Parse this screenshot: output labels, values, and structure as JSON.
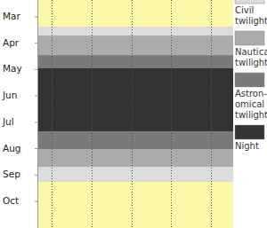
{
  "chart_data": {
    "type": "band",
    "color": "#fdf7a8",
    "xlim": [
      -0.35,
      4.55
    ],
    "xticks": [
      0,
      1,
      2,
      3,
      4
    ],
    "ylim": [
      -0.64,
      8.01
    ],
    "yticks": [
      {
        "value": 0,
        "label": "Mar"
      },
      {
        "value": 1,
        "label": "Apr"
      },
      {
        "value": 2,
        "label": "May"
      },
      {
        "value": 3,
        "label": "Jun"
      },
      {
        "value": 4,
        "label": "Jul"
      },
      {
        "value": 5,
        "label": "Aug"
      },
      {
        "value": 6,
        "label": "Sep"
      },
      {
        "value": 7,
        "label": "Oct"
      }
    ],
    "grid": true,
    "tick_labels": "y",
    "legend": "right",
    "series": [
      {
        "name": "Civil twilight",
        "color": "#dcdcdc",
        "values": [
          [
            0.37,
            0.71
          ],
          [
            5.69,
            6.26
          ]
        ]
      },
      {
        "name": "Nautical twilight",
        "color": "#ababab",
        "values": [
          [
            0.71,
            1.45
          ],
          [
            5.02,
            5.69
          ]
        ]
      },
      {
        "name": "Astron-omical twilight",
        "color": "#7a7a7a",
        "values": [
          [
            1.45,
            1.95
          ],
          [
            4.34,
            5.02
          ]
        ]
      },
      {
        "name": "Night",
        "color": "#333333",
        "values": [
          [
            1.95,
            4.34
          ]
        ]
      }
    ]
  }
}
